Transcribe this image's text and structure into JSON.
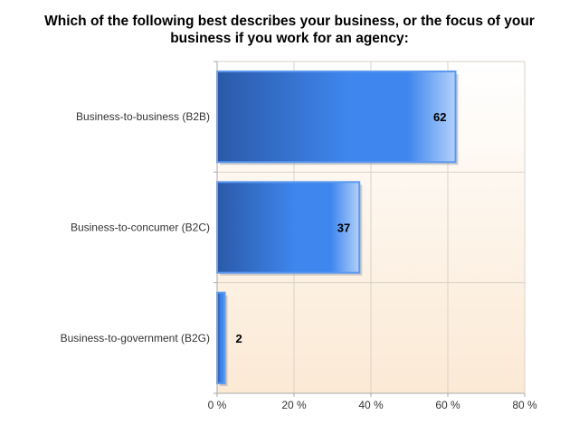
{
  "chart_data": {
    "type": "bar",
    "orientation": "horizontal",
    "title_lines": [
      "Which of the following best describes your business, or the focus of your",
      "business if you work for an agency:"
    ],
    "categories": [
      "Business-to-business (B2B)",
      "Business-to-concumer (B2C)",
      "Business-to-government (B2G)"
    ],
    "values": [
      62,
      37,
      2
    ],
    "x_ticks": [
      "0 %",
      "20 %",
      "40 %",
      "60 %",
      "80 %"
    ],
    "x_tick_values": [
      0,
      20,
      40,
      60,
      80
    ],
    "xlim": [
      0,
      80
    ],
    "xlabel": "",
    "ylabel": "",
    "grid": true,
    "legend": "none",
    "colors": {
      "bar_dark": "#2a5aa8",
      "bar_mid": "#3f86ee",
      "bar_light": "#b2d0fb",
      "bar_border": "#5b98ef",
      "plot_top": "#ffffff",
      "plot_bottom": "#fbe9d4",
      "grid": "#d8d2c8",
      "axis": "#a9a9a9"
    }
  }
}
